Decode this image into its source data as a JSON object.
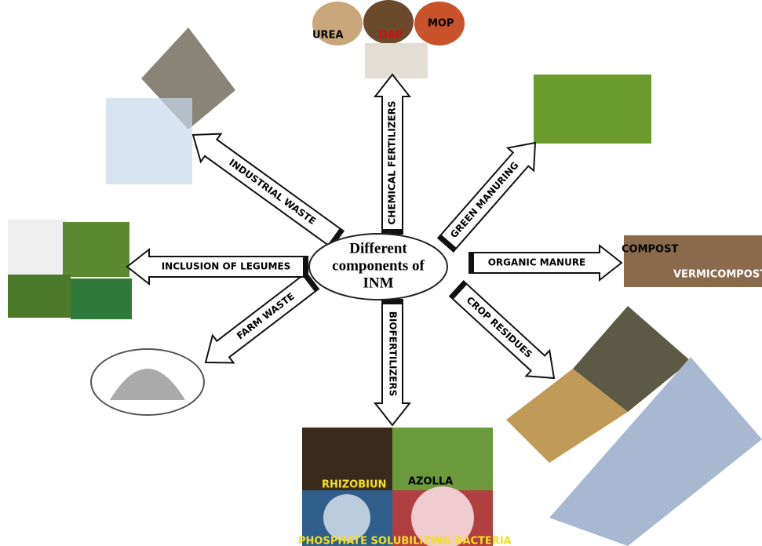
{
  "center": {
    "lines": [
      "Different",
      "components of",
      "INM"
    ]
  },
  "arrows": [
    {
      "label": "CHEMICAL FERTILIZERS"
    },
    {
      "label": "GREEN MANURING"
    },
    {
      "label": "ORGANIC MANURE"
    },
    {
      "label": "CROP RESIDUES"
    },
    {
      "label": "BIOFERTILIZERS"
    },
    {
      "label": "FARM WASTE"
    },
    {
      "label": "INCLUSION OF LEGUMES"
    },
    {
      "label": "INDUSTRIAL WASTE"
    }
  ],
  "fertilizers": [
    "UREA",
    "DAP",
    "MOP"
  ],
  "manure": [
    "COMPOST",
    "VERMICOMPOST"
  ],
  "biofertilizers": [
    "RHIZOBIUN",
    "AZOLLA",
    "PHOSPHATE SOLUBILIZING BACTERIA"
  ]
}
